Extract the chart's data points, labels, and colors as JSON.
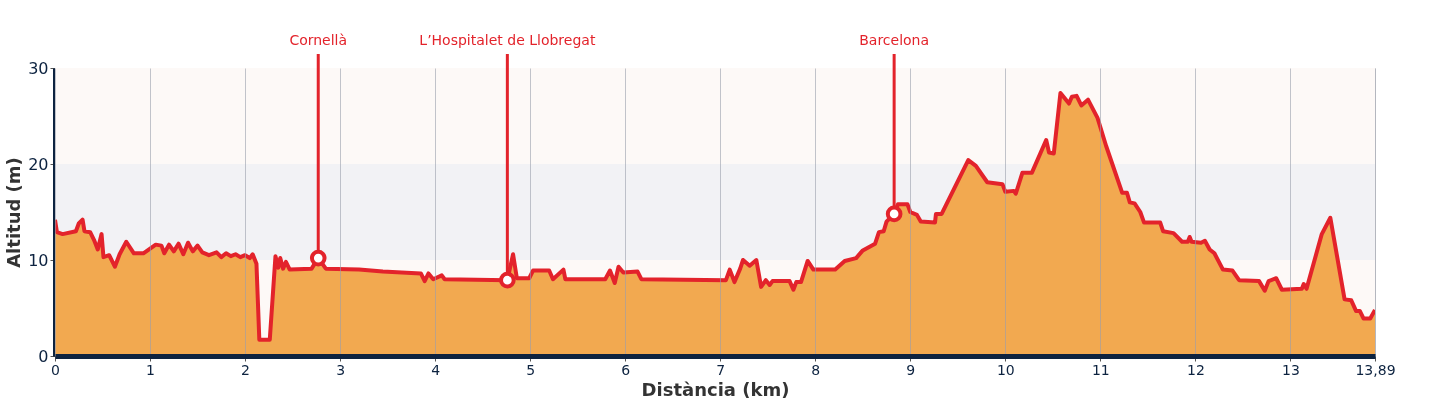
{
  "chart_data": {
    "type": "area",
    "xlabel": "Distància (km)",
    "ylabel": "Altitud (m)",
    "xlim": [
      0,
      13.89
    ],
    "ylim": [
      0,
      30
    ],
    "xticks": [
      0,
      1,
      2,
      3,
      4,
      5,
      6,
      7,
      8,
      9,
      10,
      11,
      12,
      13,
      {
        "value": 13.89,
        "label": "13,89"
      }
    ],
    "yticks": [
      0,
      10,
      20,
      30
    ],
    "grid": "x",
    "bands": [
      {
        "axis": "y",
        "from": 0,
        "to": 10,
        "color": "#fdf9f7"
      },
      {
        "axis": "y",
        "from": 10,
        "to": 20,
        "color": "#f2f2f5"
      },
      {
        "axis": "y",
        "from": 20,
        "to": 30,
        "color": "#fdf9f7"
      }
    ],
    "annotations": [
      {
        "text": "Cornellà",
        "x": 2.77,
        "y": 10.2
      },
      {
        "text": "L’Hospitalet de Llobregat",
        "x": 4.76,
        "y": 7.9
      },
      {
        "text": "Barcelona",
        "x": 8.83,
        "y": 14.8
      }
    ],
    "series": [
      {
        "color": "#e3232b",
        "x": [
          0,
          0.02,
          0.08,
          0.22,
          0.25,
          0.29,
          0.31,
          0.37,
          0.41,
          0.45,
          0.49,
          0.51,
          0.57,
          0.63,
          0.68,
          0.75,
          0.83,
          0.93,
          1.06,
          1.12,
          1.15,
          1.2,
          1.25,
          1.3,
          1.35,
          1.4,
          1.45,
          1.5,
          1.55,
          1.62,
          1.7,
          1.75,
          1.8,
          1.85,
          1.9,
          1.95,
          2.0,
          2.05,
          2.08,
          2.12,
          2.15,
          2.26,
          2.32,
          2.35,
          2.37,
          2.4,
          2.43,
          2.47,
          2.7,
          2.77,
          2.85,
          3.2,
          3.45,
          3.85,
          3.89,
          3.93,
          3.98,
          4.07,
          4.1,
          4.76,
          4.82,
          4.86,
          4.99,
          5.03,
          5.2,
          5.24,
          5.35,
          5.37,
          5.79,
          5.84,
          5.89,
          5.93,
          5.98,
          6.13,
          6.17,
          7.06,
          7.1,
          7.15,
          7.21,
          7.24,
          7.31,
          7.38,
          7.43,
          7.48,
          7.52,
          7.55,
          7.73,
          7.77,
          7.8,
          7.85,
          7.92,
          7.98,
          8.21,
          8.31,
          8.43,
          8.5,
          8.63,
          8.67,
          8.72,
          8.75,
          8.83,
          8.87,
          8.97,
          9.0,
          9.07,
          9.11,
          9.26,
          9.27,
          9.33,
          9.61,
          9.69,
          9.81,
          9.97,
          10.0,
          10.09,
          10.11,
          10.18,
          10.28,
          10.43,
          10.46,
          10.51,
          10.58,
          10.67,
          10.7,
          10.75,
          10.8,
          10.87,
          10.97,
          11.06,
          11.23,
          11.28,
          11.31,
          11.36,
          11.42,
          11.46,
          11.63,
          11.66,
          11.77,
          11.86,
          11.92,
          11.94,
          11.96,
          12.06,
          12.1,
          12.15,
          12.2,
          12.29,
          12.39,
          12.46,
          12.67,
          12.73,
          12.77,
          12.85,
          12.91,
          13.12,
          13.14,
          13.17,
          13.33,
          13.42,
          13.57,
          13.64,
          13.69,
          13.73,
          13.77,
          13.84,
          13.89
        ],
        "values": [
          14.2,
          12.9,
          12.7,
          13.0,
          13.8,
          14.2,
          13.0,
          12.9,
          12.1,
          11.1,
          12.7,
          10.3,
          10.5,
          9.3,
          10.6,
          11.9,
          10.7,
          10.7,
          11.6,
          11.5,
          10.7,
          11.6,
          10.9,
          11.7,
          10.6,
          11.8,
          10.9,
          11.5,
          10.8,
          10.5,
          10.8,
          10.3,
          10.7,
          10.4,
          10.6,
          10.3,
          10.5,
          10.2,
          10.6,
          9.6,
          1.7,
          1.7,
          10.4,
          9.2,
          10.2,
          9.1,
          9.8,
          9.0,
          9.1,
          10.2,
          9.1,
          9.0,
          8.8,
          8.6,
          7.8,
          8.6,
          8.0,
          8.4,
          8.0,
          7.9,
          10.6,
          8.1,
          8.1,
          8.9,
          8.9,
          8.0,
          9.0,
          8.0,
          8.0,
          8.9,
          7.6,
          9.3,
          8.7,
          8.8,
          8.0,
          7.9,
          9.0,
          7.7,
          9.1,
          10.0,
          9.4,
          10.0,
          7.2,
          7.9,
          7.4,
          7.8,
          7.8,
          6.9,
          7.7,
          7.7,
          9.9,
          9.0,
          9.0,
          9.9,
          10.2,
          11.0,
          11.7,
          12.9,
          13.0,
          14.0,
          14.8,
          15.8,
          15.8,
          15.0,
          14.7,
          14.0,
          13.9,
          14.8,
          14.8,
          20.4,
          19.8,
          18.1,
          17.9,
          17.1,
          17.2,
          16.9,
          19.1,
          19.1,
          22.5,
          21.2,
          21.1,
          27.4,
          26.3,
          27.0,
          27.1,
          26.1,
          26.7,
          24.8,
          21.9,
          17.0,
          17.0,
          16.0,
          15.9,
          15.0,
          13.9,
          13.9,
          13.0,
          12.8,
          11.9,
          11.9,
          12.4,
          11.9,
          11.8,
          12.0,
          11.1,
          10.7,
          9.0,
          8.9,
          7.9,
          7.8,
          6.8,
          7.8,
          8.1,
          6.9,
          7.0,
          7.5,
          7.0,
          12.7,
          14.4,
          5.9,
          5.8,
          4.7,
          4.7,
          3.9,
          3.9,
          4.8
        ]
      }
    ]
  }
}
